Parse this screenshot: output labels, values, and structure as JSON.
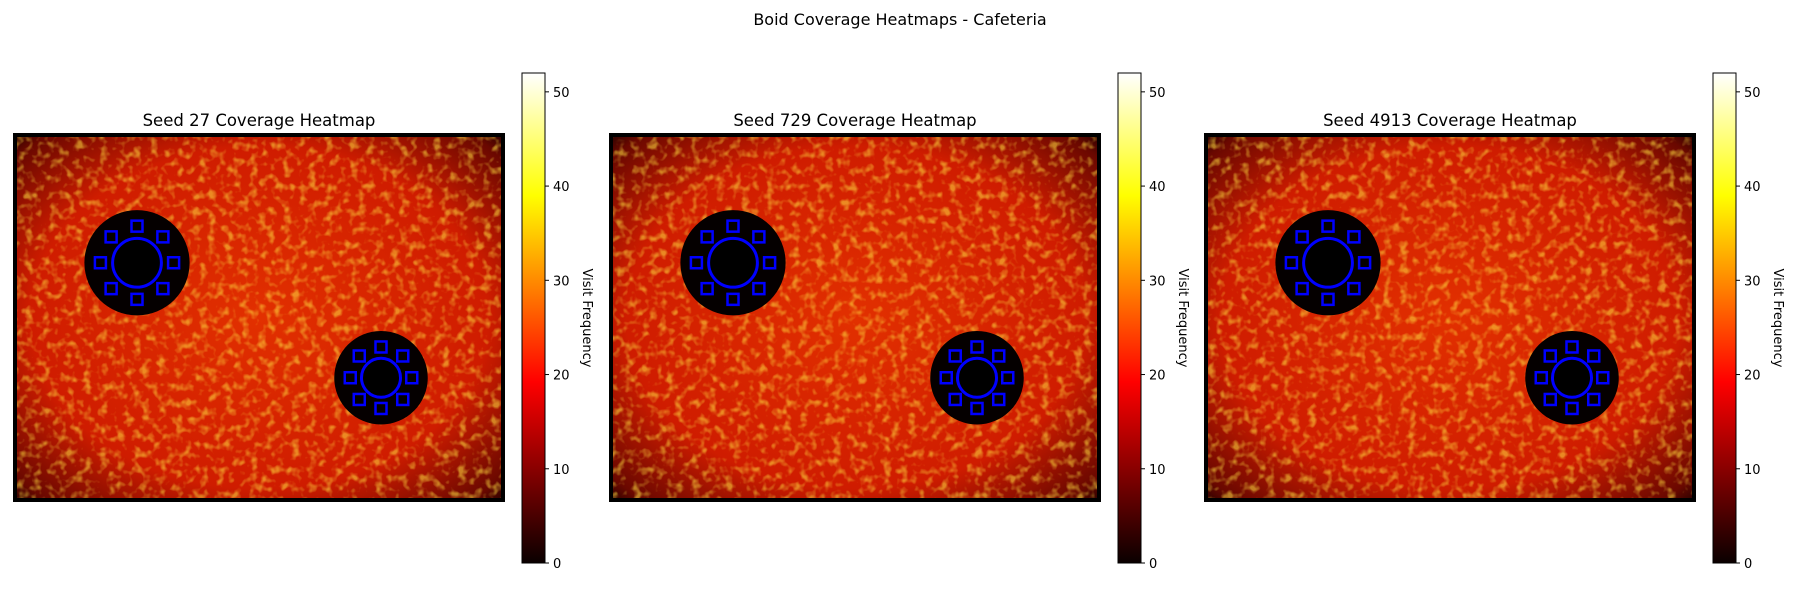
{
  "figure": {
    "title": "Boid Coverage Heatmaps - Cafeteria"
  },
  "chart_data": [
    {
      "type": "heatmap",
      "title": "Seed 27 Coverage Heatmap",
      "colorbar": {
        "label": "Visit Frequency",
        "range": [
          0,
          52
        ],
        "ticks": [
          0,
          10,
          20,
          30,
          40,
          50
        ],
        "colormap": "hot"
      },
      "tables": [
        {
          "center": [
            0.25,
            0.35
          ],
          "radius": 0.05,
          "chairs": 8,
          "ring": 0.075
        },
        {
          "center": [
            0.75,
            0.665
          ],
          "radius": 0.04,
          "chairs": 8,
          "ring": 0.063
        }
      ]
    },
    {
      "type": "heatmap",
      "title": "Seed 729 Coverage Heatmap",
      "colorbar": {
        "label": "Visit Frequency",
        "range": [
          0,
          52
        ],
        "ticks": [
          0,
          10,
          20,
          30,
          40,
          50
        ],
        "colormap": "hot"
      },
      "tables": [
        {
          "center": [
            0.25,
            0.35
          ],
          "radius": 0.05,
          "chairs": 8,
          "ring": 0.075
        },
        {
          "center": [
            0.75,
            0.665
          ],
          "radius": 0.04,
          "chairs": 8,
          "ring": 0.063
        }
      ]
    },
    {
      "type": "heatmap",
      "title": "Seed 4913 Coverage Heatmap",
      "colorbar": {
        "label": "Visit Frequency",
        "range": [
          0,
          52
        ],
        "ticks": [
          0,
          10,
          20,
          30,
          40,
          50
        ],
        "colormap": "hot"
      },
      "tables": [
        {
          "center": [
            0.25,
            0.35
          ],
          "radius": 0.05,
          "chairs": 8,
          "ring": 0.075
        },
        {
          "center": [
            0.75,
            0.665
          ],
          "radius": 0.04,
          "chairs": 8,
          "ring": 0.063
        }
      ]
    }
  ],
  "colors": {
    "table_outline": "#0000ff",
    "table_fill": "#000000"
  }
}
